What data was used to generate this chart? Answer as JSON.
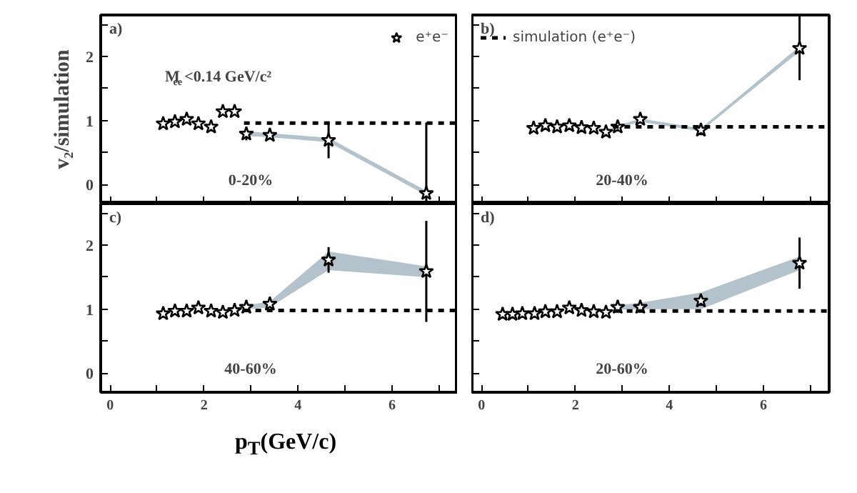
{
  "chart_data": [
    {
      "type": "scatter",
      "ylabel": "v₂/simulation",
      "annotations": [
        "a)",
        "0-20%",
        "M$_{ee}$<0.14 GeV/c²"
      ],
      "xlim": [
        -0.2,
        7.4
      ],
      "ylim": [
        -0.3,
        2.65
      ],
      "xticks": [
        0,
        {
          "value": 1,
          "label": null
        },
        2,
        {
          "value": 3,
          "label": null
        },
        4,
        {
          "value": 5,
          "label": null
        },
        6,
        {
          "value": 7,
          "label": null
        }
      ],
      "yticks": [
        0,
        {
          "value": 0.5,
          "label": null
        },
        1,
        {
          "value": 1.5,
          "label": null
        },
        2,
        {
          "value": 2.5,
          "label": null
        }
      ],
      "tick_labels": "y",
      "grid": false,
      "legend": "top right",
      "series": [
        {
          "name": "e⁺e⁻",
          "marker": "star",
          "color": "#000000",
          "x": [
            1.13,
            1.38,
            1.63,
            1.88,
            2.15,
            2.4,
            2.65,
            2.9,
            3.4,
            4.65,
            6.73
          ],
          "values": [
            0.95,
            0.98,
            1.02,
            0.95,
            0.9,
            1.14,
            1.14,
            0.79,
            0.77,
            0.69,
            -0.14
          ],
          "errors": [
            null,
            null,
            null,
            null,
            null,
            null,
            null,
            0.1,
            0.07,
            0.28,
            [
              -0.28,
              0.97
            ]
          ],
          "lower": [
            null,
            null,
            null,
            null,
            null,
            null,
            null,
            0.76,
            0.74,
            0.66,
            -0.17
          ],
          "upper": [
            null,
            null,
            null,
            null,
            null,
            null,
            null,
            0.83,
            0.8,
            0.73,
            -0.1
          ]
        },
        {
          "type": "line",
          "line_style": "dashed",
          "color": "#000000",
          "x": [
            2.85,
            7.4
          ],
          "values": [
            0.96,
            0.96
          ]
        }
      ]
    },
    {
      "type": "scatter",
      "annotations": [
        "b)",
        "20-40%"
      ],
      "xlim": [
        -0.2,
        7.4
      ],
      "ylim": [
        -0.3,
        2.65
      ],
      "xticks": [
        0,
        {
          "value": 1,
          "label": null
        },
        2,
        {
          "value": 3,
          "label": null
        },
        4,
        {
          "value": 5,
          "label": null
        },
        6,
        {
          "value": 7,
          "label": null
        }
      ],
      "yticks": [
        0,
        {
          "value": 0.5,
          "label": null
        },
        1,
        {
          "value": 1.5,
          "label": null
        },
        2,
        {
          "value": 2.5,
          "label": null
        }
      ],
      "tick_labels": false,
      "grid": false,
      "legend": "top left",
      "series": [
        {
          "marker": "star",
          "color": "#000000",
          "x": [
            1.11,
            1.36,
            1.61,
            1.87,
            2.13,
            2.39,
            2.65,
            2.9,
            3.38,
            4.67,
            6.77
          ],
          "values": [
            0.88,
            0.92,
            0.9,
            0.92,
            0.89,
            0.88,
            0.82,
            0.9,
            1.02,
            0.85,
            2.13
          ],
          "errors": [
            null,
            null,
            null,
            null,
            null,
            null,
            null,
            null,
            null,
            0.08,
            0.5
          ],
          "lower": [
            null,
            null,
            null,
            null,
            null,
            null,
            null,
            0.88,
            0.98,
            0.83,
            2.08
          ],
          "upper": [
            null,
            null,
            null,
            null,
            null,
            null,
            null,
            0.92,
            1.03,
            0.88,
            2.16
          ]
        },
        {
          "type": "line",
          "name": "simulation (e⁺e⁻)",
          "line_style": "dashed",
          "color": "#000000",
          "x": [
            2.8,
            7.4
          ],
          "values": [
            0.9,
            0.9
          ]
        }
      ]
    },
    {
      "type": "scatter",
      "xlabel": "p$_{T}$(GeV/c)",
      "annotations": [
        "c)",
        "40-60%"
      ],
      "xlim": [
        -0.2,
        7.4
      ],
      "ylim": [
        -0.3,
        2.65
      ],
      "xticks": [
        0,
        {
          "value": 1,
          "label": null
        },
        2,
        {
          "value": 3,
          "label": null
        },
        4,
        {
          "value": 5,
          "label": null
        },
        6,
        {
          "value": 7,
          "label": null
        }
      ],
      "yticks": [
        0,
        {
          "value": 0.5,
          "label": null
        },
        1,
        {
          "value": 1.5,
          "label": null
        },
        2,
        {
          "value": 2.5,
          "label": null
        }
      ],
      "grid": false,
      "series": [
        {
          "marker": "star",
          "color": "#000000",
          "x": [
            1.13,
            1.38,
            1.63,
            1.88,
            2.15,
            2.4,
            2.65,
            2.9,
            3.4,
            4.65,
            6.73
          ],
          "values": [
            0.93,
            0.97,
            0.97,
            1.02,
            0.97,
            0.95,
            0.98,
            1.03,
            1.08,
            1.77,
            1.59
          ],
          "errors": [
            null,
            null,
            null,
            null,
            null,
            null,
            null,
            null,
            null,
            0.2,
            0.79
          ],
          "lower": [
            null,
            null,
            null,
            null,
            null,
            null,
            null,
            1.0,
            1.03,
            1.61,
            1.5
          ],
          "upper": [
            null,
            null,
            null,
            null,
            null,
            null,
            null,
            1.06,
            1.12,
            1.9,
            1.67
          ]
        },
        {
          "type": "line",
          "line_style": "dashed",
          "color": "#000000",
          "x": [
            2.85,
            7.4
          ],
          "values": [
            0.98,
            0.98
          ]
        }
      ]
    },
    {
      "type": "scatter",
      "annotations": [
        "d)",
        "20-60%"
      ],
      "xlim": [
        -0.2,
        7.4
      ],
      "ylim": [
        -0.3,
        2.65
      ],
      "xticks": [
        0,
        {
          "value": 1,
          "label": null
        },
        2,
        {
          "value": 3,
          "label": null
        },
        4,
        {
          "value": 5,
          "label": null
        },
        6,
        {
          "value": 7,
          "label": null
        }
      ],
      "yticks": [
        0,
        {
          "value": 0.5,
          "label": null
        },
        1,
        {
          "value": 1.5,
          "label": null
        },
        2,
        {
          "value": 2.5,
          "label": null
        }
      ],
      "tick_labels": "x",
      "grid": false,
      "series": [
        {
          "marker": "star",
          "color": "#000000",
          "x": [
            0.45,
            0.66,
            0.87,
            1.13,
            1.36,
            1.61,
            1.87,
            2.13,
            2.39,
            2.65,
            2.9,
            3.38,
            4.67,
            6.77
          ],
          "values": [
            0.92,
            0.92,
            0.93,
            0.93,
            0.96,
            0.96,
            1.02,
            0.98,
            0.96,
            0.95,
            1.03,
            1.03,
            1.13,
            1.72
          ],
          "errors": [
            null,
            null,
            null,
            null,
            null,
            null,
            null,
            null,
            null,
            null,
            null,
            null,
            0.08,
            0.4
          ],
          "lower": [
            null,
            null,
            null,
            null,
            null,
            null,
            null,
            null,
            null,
            null,
            0.99,
            1.0,
            1.0,
            1.61
          ],
          "upper": [
            null,
            null,
            null,
            null,
            null,
            null,
            null,
            null,
            null,
            null,
            1.06,
            1.1,
            1.26,
            1.82
          ]
        },
        {
          "type": "line",
          "line_style": "dashed",
          "color": "#000000",
          "x": [
            2.85,
            7.4
          ],
          "values": [
            0.97,
            0.97
          ]
        }
      ]
    }
  ]
}
